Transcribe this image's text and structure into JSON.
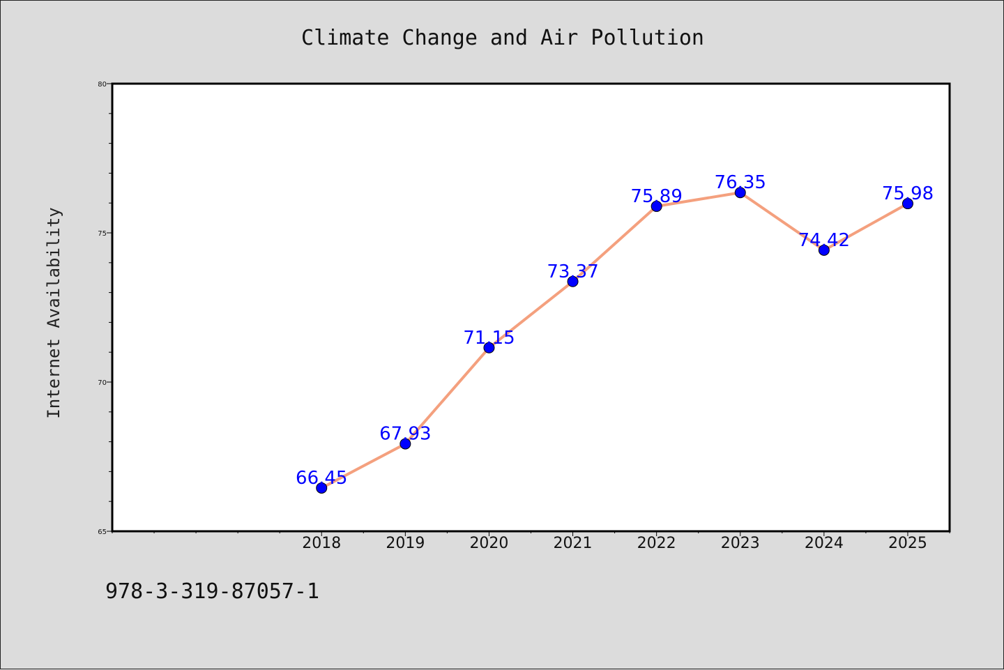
{
  "chart_data": {
    "type": "line",
    "title": "Climate Change and Air Pollution",
    "xlabel": "",
    "ylabel": "Internet Availability",
    "categories": [
      "2018",
      "2019",
      "2020",
      "2021",
      "2022",
      "2023",
      "2024",
      "2025"
    ],
    "values": [
      66.45,
      67.93,
      71.15,
      73.37,
      75.89,
      76.35,
      74.42,
      75.98
    ],
    "ylim": [
      65,
      80
    ],
    "yticks": [
      65,
      70,
      75,
      80
    ],
    "xlim": [
      2015.5,
      2025.5
    ],
    "grid": false,
    "legend": "none",
    "line_color": "#f4a07e",
    "marker_color": "#0000ff",
    "label_color": "#0000ff"
  },
  "footer": {
    "code": "978-3-319-87057-1"
  }
}
